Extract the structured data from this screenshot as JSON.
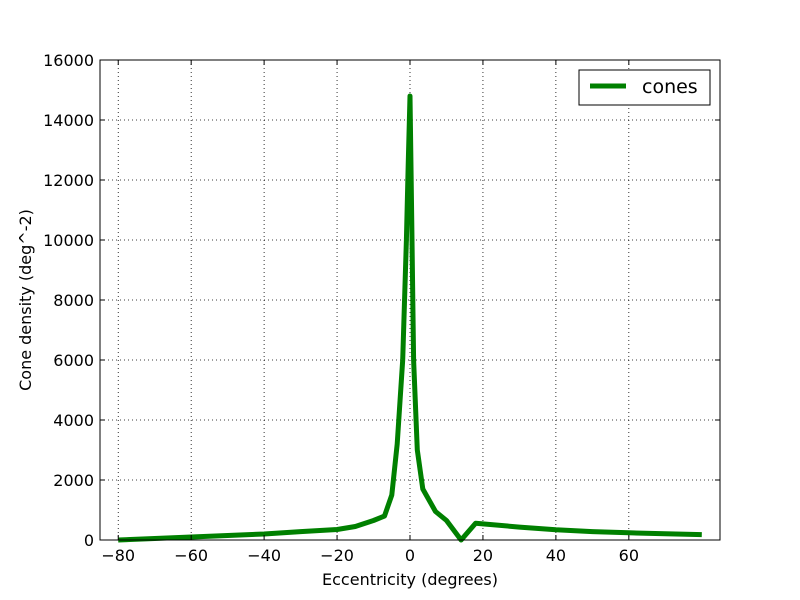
{
  "chart_data": {
    "type": "line",
    "xlabel": "Eccentricity (degrees)",
    "ylabel": "Cone density (deg^-2)",
    "xlim": [
      -85,
      85
    ],
    "ylim": [
      0,
      16000
    ],
    "xticks": [
      -80,
      -60,
      -40,
      -20,
      0,
      20,
      40,
      60
    ],
    "yticks": [
      0,
      2000,
      4000,
      6000,
      8000,
      10000,
      12000,
      14000,
      16000
    ],
    "grid": true,
    "legend_position": "top-right",
    "series": [
      {
        "name": "cones",
        "color": "#008000",
        "x": [
          -80,
          -70,
          -60,
          -50,
          -40,
          -30,
          -20,
          -15,
          -10,
          -7,
          -5,
          -3.5,
          -2,
          -1,
          -0.5,
          0,
          0.5,
          1,
          2,
          3.5,
          7,
          10,
          14,
          18,
          30,
          40,
          50,
          60,
          70,
          80
        ],
        "y": [
          0,
          50,
          100,
          150,
          200,
          280,
          350,
          450,
          650,
          800,
          1500,
          3200,
          6000,
          10000,
          12500,
          14800,
          10500,
          6000,
          3000,
          1700,
          950,
          650,
          0,
          560,
          430,
          340,
          280,
          240,
          210,
          180
        ]
      }
    ]
  }
}
